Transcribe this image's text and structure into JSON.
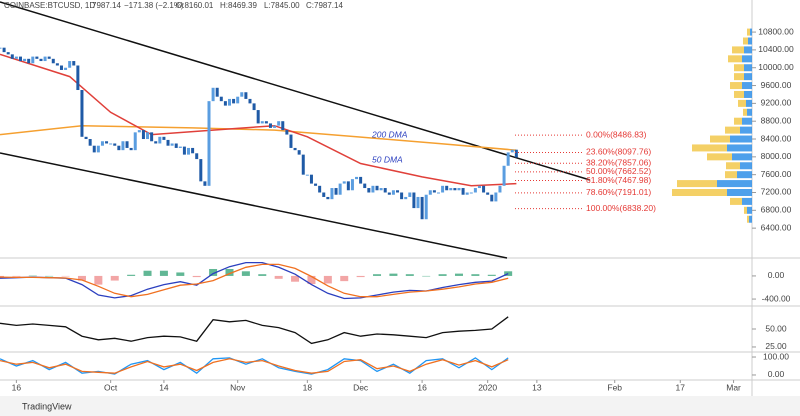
{
  "header": {
    "symbol": "COINBASE:BTCUSD, 1D",
    "last": "7987.14",
    "change": "−171.38 (−2.1%)",
    "ohlc": [
      "O:8160.01",
      "H:8469.39",
      "L:7845.00",
      "C:7987.14"
    ]
  },
  "footer": "TradingView",
  "chart_data": [
    {
      "type": "candlestick",
      "up_color": "#5a9de0",
      "down_color": "#1f5aa6",
      "xlim": [
        -27,
        156.5
      ],
      "xticks": [
        {
          "value": -23,
          "label": "16"
        },
        {
          "value": 0,
          "label": "Oct"
        },
        {
          "value": 13,
          "label": "14"
        },
        {
          "value": 31,
          "label": "Nov"
        },
        {
          "value": 48,
          "label": "18"
        },
        {
          "value": 61,
          "label": "Dec"
        },
        {
          "value": 76,
          "label": "16"
        },
        {
          "value": 92,
          "label": "2020"
        },
        {
          "value": 104,
          "label": "13"
        },
        {
          "value": 123,
          "label": "Feb"
        },
        {
          "value": 139,
          "label": "17"
        },
        {
          "value": 152,
          "label": "Mar"
        }
      ],
      "ylim": [
        5730,
        11520
      ],
      "yticks": [
        {
          "value": 6400,
          "label": "6400.00"
        },
        {
          "value": 6800,
          "label": "6800.00"
        },
        {
          "value": 7200,
          "label": "7200.00"
        },
        {
          "value": 7600,
          "label": "7600.00"
        },
        {
          "value": 8000,
          "label": "8000.00"
        },
        {
          "value": 8400,
          "label": "8400.00"
        },
        {
          "value": 8800,
          "label": "8800.00"
        },
        {
          "value": 9200,
          "label": "9200.00"
        },
        {
          "value": 9600,
          "label": "9600.00"
        },
        {
          "value": 10000,
          "label": "10000.00"
        },
        {
          "value": 10400,
          "label": "10400.00"
        },
        {
          "value": 10800,
          "label": "10800.00"
        }
      ],
      "x": [
        -27,
        -26,
        -25,
        -24,
        -23,
        -22,
        -21,
        -20,
        -19,
        -18,
        -17,
        -16,
        -15,
        -14,
        -13,
        -12,
        -11,
        -10,
        -9,
        -8,
        -7,
        -6,
        -5,
        -4,
        -3,
        -2,
        -1,
        0,
        1,
        2,
        3,
        4,
        5,
        6,
        7,
        8,
        9,
        10,
        11,
        12,
        13,
        14,
        15,
        16,
        17,
        18,
        19,
        20,
        21,
        22,
        23,
        24,
        25,
        26,
        27,
        28,
        29,
        30,
        31,
        32,
        33,
        34,
        35,
        36,
        37,
        38,
        39,
        40,
        41,
        42,
        43,
        44,
        45,
        46,
        47,
        48,
        49,
        50,
        51,
        52,
        53,
        54,
        55,
        56,
        57,
        58,
        59,
        60,
        61,
        62,
        63,
        64,
        65,
        66,
        67,
        68,
        69,
        70,
        71,
        72,
        73,
        74,
        75,
        76,
        77,
        78,
        79,
        80,
        81,
        82,
        83,
        84,
        85,
        86,
        87,
        88,
        89,
        90,
        91,
        92,
        93,
        94,
        95,
        96,
        97,
        98,
        99
      ],
      "values": [
        10450,
        10350,
        10300,
        10200,
        10250,
        10150,
        10200,
        10100,
        10250,
        10200,
        10150,
        10250,
        10200,
        10100,
        10050,
        9950,
        10000,
        10150,
        10050,
        9500,
        8450,
        8400,
        8250,
        8100,
        8250,
        8350,
        8300,
        8300,
        8250,
        8150,
        8350,
        8200,
        8150,
        8550,
        8600,
        8400,
        8550,
        8350,
        8300,
        8450,
        8380,
        8250,
        8300,
        8200,
        8230,
        8050,
        8200,
        8080,
        7950,
        7450,
        7350,
        9250,
        9550,
        9350,
        9250,
        9150,
        9300,
        9200,
        9350,
        9450,
        9300,
        9200,
        9050,
        8750,
        8800,
        8750,
        8650,
        8700,
        8800,
        8600,
        8500,
        8200,
        8150,
        8050,
        7600,
        7600,
        7400,
        7350,
        7200,
        7100,
        7050,
        7300,
        7150,
        7400,
        7450,
        7250,
        7500,
        7550,
        7400,
        7300,
        7200,
        7350,
        7250,
        7300,
        7200,
        7150,
        7250,
        7200,
        7050,
        7100,
        7200,
        6850,
        7100,
        6600,
        7150,
        7250,
        7200,
        7200,
        7350,
        7250,
        7300,
        7250,
        7300,
        7150,
        7200,
        7200,
        7300,
        7350,
        7200,
        7150,
        7000,
        7200,
        7350,
        7800,
        8100,
        8160,
        7987.14
      ],
      "series": [
        {
          "name": "200 DMA",
          "color": "#f5a030",
          "x": [
            -27,
            -7,
            20,
            40,
            60,
            80,
            99
          ],
          "values": [
            8500,
            8700,
            8650,
            8600,
            8450,
            8300,
            8150
          ]
        },
        {
          "name": "50 DMA",
          "color": "#e0403a",
          "x": [
            -27,
            -10,
            0,
            10,
            25,
            40,
            48,
            61,
            76,
            88,
            99
          ],
          "values": [
            10300,
            9800,
            9000,
            8500,
            8600,
            8700,
            8450,
            7850,
            7550,
            7350,
            7400
          ]
        }
      ],
      "fib_levels": [
        {
          "value": 8486.83,
          "label": "0.00%(8486.83)"
        },
        {
          "value": 8097.76,
          "label": "23.60%(8097.76)"
        },
        {
          "value": 7857.06,
          "label": "38.20%(7857.06)"
        },
        {
          "value": 7662.52,
          "label": "50.00%(7662.52)"
        },
        {
          "value": 7467.98,
          "label": "61.80%(7467.98)"
        },
        {
          "value": 7191.01,
          "label": "78.60%(7191.01)"
        },
        {
          "value": 6838.2,
          "label": "100.00%(6838.20)"
        }
      ],
      "fib_color": "#e53935",
      "volume_profile": {
        "up_color": "#2f8fe8",
        "down_color": "#f2c84b",
        "levels": [
          6600,
          6800,
          7000,
          7200,
          7400,
          7600,
          7800,
          8000,
          8200,
          8400,
          8600,
          8800,
          9000,
          9200,
          9400,
          9600,
          9800,
          10000,
          10200,
          10400,
          10600,
          10800
        ],
        "up": [
          3,
          5,
          10,
          25,
          35,
          15,
          12,
          20,
          25,
          22,
          12,
          10,
          5,
          6,
          8,
          10,
          8,
          8,
          10,
          8,
          4,
          2
        ],
        "down": [
          2,
          3,
          12,
          55,
          40,
          12,
          14,
          25,
          35,
          20,
          15,
          8,
          4,
          8,
          10,
          12,
          10,
          10,
          14,
          12,
          5,
          3
        ]
      }
    },
    {
      "type": "macd",
      "xlim": [
        -27,
        156.5
      ],
      "ylim": [
        -520,
        310
      ],
      "yticks": [
        {
          "value": 0,
          "label": "0.00"
        },
        {
          "value": -400,
          "label": "-400.00"
        }
      ],
      "x": [
        -27,
        -23,
        -19,
        -15,
        -11,
        -7,
        -3,
        1,
        5,
        9,
        13,
        17,
        21,
        25,
        29,
        33,
        37,
        41,
        45,
        49,
        53,
        57,
        61,
        65,
        69,
        73,
        77,
        81,
        85,
        89,
        93,
        97
      ],
      "series": [
        {
          "color": "#2b3fbf",
          "values": [
            -40,
            -30,
            -20,
            -30,
            -40,
            -150,
            -330,
            -380,
            -340,
            -230,
            -150,
            -100,
            -160,
            40,
            160,
            230,
            230,
            150,
            30,
            -150,
            -300,
            -390,
            -380,
            -330,
            -280,
            -250,
            -260,
            -200,
            -150,
            -110,
            -90,
            40
          ]
        },
        {
          "color": "#f07020",
          "values": [
            -20,
            -25,
            -25,
            -30,
            -35,
            -70,
            -180,
            -300,
            -360,
            -320,
            -240,
            -160,
            -140,
            -80,
            40,
            150,
            200,
            200,
            130,
            -10,
            -170,
            -300,
            -360,
            -360,
            -320,
            -280,
            -260,
            -230,
            -190,
            -140,
            -110,
            -40
          ]
        }
      ],
      "histogram": {
        "up_color": "#3aa57a",
        "down_color": "#ef8f8f",
        "values": [
          -20,
          -5,
          5,
          0,
          -5,
          -80,
          -150,
          -80,
          20,
          90,
          90,
          60,
          -20,
          120,
          120,
          80,
          30,
          -50,
          -100,
          -140,
          -130,
          -90,
          -20,
          30,
          40,
          30,
          0,
          30,
          40,
          30,
          20,
          80
        ]
      }
    },
    {
      "type": "line",
      "xlim": [
        -27,
        156.5
      ],
      "ylim": [
        18,
        82
      ],
      "yticks": [
        {
          "value": 50,
          "label": "50.00"
        },
        {
          "value": 25,
          "label": "25.00"
        }
      ],
      "x": [
        -27,
        -23,
        -19,
        -15,
        -11,
        -7,
        -3,
        1,
        5,
        9,
        13,
        17,
        21,
        25,
        29,
        33,
        37,
        41,
        45,
        49,
        53,
        57,
        61,
        65,
        69,
        73,
        77,
        81,
        85,
        89,
        93,
        97
      ],
      "series": [
        {
          "color": "#111111",
          "values": [
            58,
            55,
            57,
            55,
            53,
            40,
            35,
            37,
            33,
            38,
            40,
            39,
            33,
            63,
            60,
            62,
            55,
            52,
            45,
            30,
            35,
            45,
            40,
            43,
            42,
            40,
            38,
            45,
            47,
            48,
            50,
            67
          ]
        }
      ]
    },
    {
      "type": "line",
      "xlim": [
        -27,
        156.5
      ],
      "ylim": [
        -28,
        128
      ],
      "yticks": [
        {
          "value": 100,
          "label": "100.00"
        },
        {
          "value": 0,
          "label": "0.00"
        }
      ],
      "x": [
        -27,
        -23,
        -19,
        -15,
        -11,
        -7,
        -3,
        1,
        5,
        9,
        13,
        17,
        21,
        25,
        29,
        33,
        37,
        41,
        45,
        49,
        53,
        57,
        61,
        65,
        69,
        73,
        77,
        81,
        85,
        89,
        93,
        97
      ],
      "series": [
        {
          "color": "#2196f3",
          "values": [
            90,
            50,
            80,
            30,
            70,
            10,
            20,
            5,
            60,
            80,
            30,
            70,
            10,
            90,
            95,
            60,
            90,
            40,
            20,
            5,
            30,
            90,
            80,
            20,
            60,
            10,
            80,
            90,
            40,
            95,
            30,
            95
          ]
        },
        {
          "color": "#f07020",
          "values": [
            80,
            60,
            70,
            40,
            60,
            20,
            15,
            10,
            45,
            75,
            45,
            60,
            25,
            70,
            90,
            70,
            80,
            50,
            25,
            10,
            20,
            75,
            85,
            35,
            50,
            20,
            60,
            85,
            55,
            80,
            45,
            85
          ]
        }
      ]
    }
  ]
}
